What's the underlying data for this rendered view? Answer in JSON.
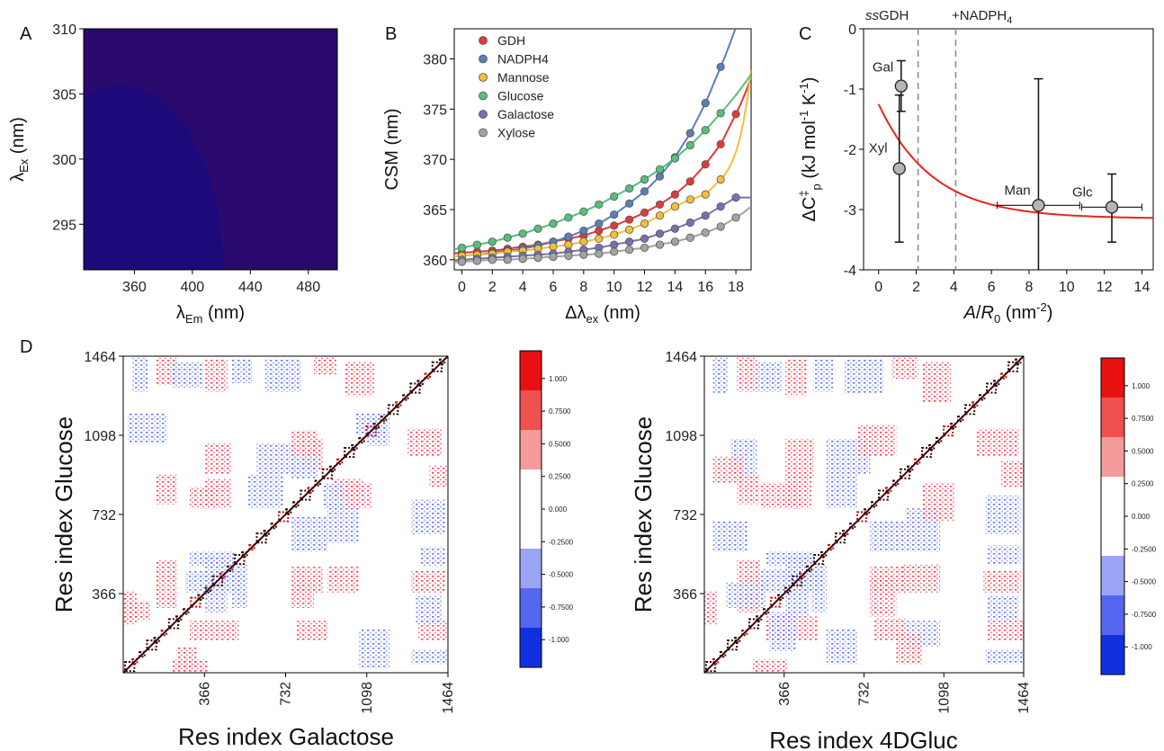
{
  "panel_labels": [
    "A",
    "B",
    "C",
    "D"
  ],
  "chart_data": [
    {
      "panel": "A",
      "type": "heatmap",
      "xlabel": "λEm (nm)",
      "ylabel": "λEx (nm)",
      "xlabel_main": "λ",
      "xlabel_sub": "Em",
      "xlabel_unit": " (nm)",
      "ylabel_main": "λ",
      "ylabel_sub": "Ex",
      "ylabel_unit": " (nm)",
      "xlim": [
        325,
        500
      ],
      "ylim": [
        291.5,
        310
      ],
      "xticks": [
        "360",
        "400",
        "440",
        "480"
      ],
      "yticks": [
        "295",
        "300",
        "305",
        "310"
      ],
      "peak": {
        "em": 350,
        "ex": 291.5
      },
      "colormap": "jet"
    },
    {
      "panel": "B",
      "type": "scatter",
      "xlabel": "Δλex (nm)",
      "xlabel_main": "Δλ",
      "xlabel_sub": "ex",
      "xlabel_unit": " (nm)",
      "ylabel": "CSM (nm)",
      "xlim": [
        -0.5,
        19
      ],
      "ylim": [
        359,
        383
      ],
      "xticks": [
        "0",
        "2",
        "4",
        "6",
        "8",
        "10",
        "12",
        "14",
        "16",
        "18"
      ],
      "yticks": [
        "360",
        "365",
        "370",
        "375",
        "380"
      ],
      "legend_position": "top-left",
      "x": [
        0,
        1,
        2,
        3,
        4,
        5,
        6,
        7,
        8,
        9,
        10,
        11,
        12,
        13,
        14,
        15,
        16,
        17,
        18
      ],
      "series": [
        {
          "name": "GDH",
          "color": "#e03a3a",
          "values": [
            360.7,
            360.8,
            360.9,
            361.1,
            361.3,
            361.5,
            361.8,
            362.1,
            362.4,
            362.9,
            363.4,
            364.0,
            364.7,
            365.5,
            366.5,
            367.8,
            369.5,
            371.5,
            374.5
          ]
        },
        {
          "name": "NADPH4",
          "color": "#5a7fb5",
          "values": [
            360.4,
            360.5,
            360.7,
            360.9,
            361.1,
            361.4,
            361.8,
            362.3,
            362.9,
            363.6,
            364.5,
            365.6,
            366.8,
            368.3,
            370.2,
            372.6,
            375.6,
            379.2,
            null
          ]
        },
        {
          "name": "Mannose",
          "color": "#f2bf3a",
          "values": [
            360.4,
            360.5,
            360.6,
            360.8,
            360.9,
            361.1,
            361.3,
            361.5,
            361.8,
            362.1,
            362.5,
            363.0,
            363.6,
            364.4,
            365.3,
            366.0,
            366.5,
            368.0,
            null
          ]
        },
        {
          "name": "Glucose",
          "color": "#55c07a",
          "values": [
            361.2,
            361.5,
            361.8,
            362.2,
            362.6,
            363.1,
            363.6,
            364.2,
            364.8,
            365.5,
            366.3,
            367.1,
            368.0,
            369.0,
            370.1,
            371.4,
            372.9,
            374.6,
            null
          ]
        },
        {
          "name": "Galactose",
          "color": "#7a70ae",
          "values": [
            360.0,
            360.1,
            360.2,
            360.3,
            360.4,
            360.5,
            360.6,
            360.8,
            361.0,
            361.2,
            361.5,
            361.8,
            362.1,
            362.6,
            363.1,
            363.7,
            364.4,
            365.3,
            366.2
          ]
        },
        {
          "name": "Xylose",
          "color": "#a3a3a3",
          "values": [
            359.8,
            359.9,
            360.0,
            360.0,
            360.1,
            360.2,
            360.3,
            360.4,
            360.5,
            360.6,
            360.8,
            361.0,
            361.2,
            361.5,
            361.8,
            362.2,
            362.7,
            363.3,
            364.2
          ]
        }
      ]
    },
    {
      "panel": "C",
      "type": "scatter",
      "xlabel": "A/R0 (nm-2)",
      "xlabel_a": "A",
      "xlabel_b": "/",
      "xlabel_c": "R",
      "xlabel_sub": "0",
      "xlabel_unit": " (nm",
      "xlabel_sup": "-2",
      "xlabel_close": ")",
      "ylabel": "ΔC‡p (kJ mol-1 K-1)",
      "ylabel_a": "ΔC",
      "ylabel_sup": "‡",
      "ylabel_sub": "p",
      "ylabel_b": " (kJ mol",
      "ylabel_sup2": "-1",
      "ylabel_c": " K",
      "ylabel_sup3": "-1",
      "ylabel_d": ")",
      "xlim": [
        -0.8,
        14.6
      ],
      "ylim": [
        -4,
        0
      ],
      "xticks": [
        "0",
        "2",
        "4",
        "6",
        "8",
        "10",
        "12",
        "14"
      ],
      "yticks": [
        "-4",
        "-3",
        "-2",
        "-1",
        "0"
      ],
      "annotations": [
        {
          "text_a": "ss",
          "text_b": "GDH",
          "x": 2.1
        },
        {
          "text": "+NADPH",
          "sub": "4",
          "x": 4.1
        }
      ],
      "points": [
        {
          "label": "Gal",
          "x": 1.2,
          "y": -0.95,
          "yerr": [
            0.42,
            0.42
          ],
          "xerr": 0
        },
        {
          "label": "Xyl",
          "x": 1.1,
          "y": -2.32,
          "yerr": [
            1.22,
            1.22
          ],
          "xerr": 0
        },
        {
          "label": "Man",
          "x": 8.5,
          "y": -2.93,
          "yerr": [
            2.1,
            1.2
          ],
          "xerr": 2.2
        },
        {
          "label": "Glc",
          "x": 12.4,
          "y": -2.96,
          "yerr": [
            0.55,
            0.58
          ],
          "xerr": 1.6
        }
      ],
      "fit": {
        "color": "#e8231f",
        "a": -3.15,
        "b": 1.9,
        "k": 0.35
      }
    },
    {
      "panel": "D1",
      "type": "heatmap",
      "xlabel": "Res index Galactose",
      "ylabel": "Res index Glucose",
      "ticks": [
        "366",
        "732",
        "1098",
        "1464"
      ],
      "range": [
        0,
        1464
      ],
      "colorbar": [
        "1.000",
        "0.7500",
        "0.5000",
        "0.2500",
        "0.000",
        "-0.2500",
        "-0.5000",
        "-0.7500",
        "-1.000"
      ],
      "blocks": [
        {
          "x": [
            40,
            110
          ],
          "y": [
            1300,
            1464
          ],
          "v": -0.5
        },
        {
          "x": [
            150,
            240
          ],
          "y": [
            1330,
            1464
          ],
          "v": 0.5
        },
        {
          "x": [
            220,
            360
          ],
          "y": [
            1320,
            1440
          ],
          "v": -0.45
        },
        {
          "x": [
            370,
            470
          ],
          "y": [
            1300,
            1450
          ],
          "v": 0.6
        },
        {
          "x": [
            490,
            580
          ],
          "y": [
            1340,
            1450
          ],
          "v": -0.5
        },
        {
          "x": [
            640,
            800
          ],
          "y": [
            1300,
            1450
          ],
          "v": -0.5
        },
        {
          "x": [
            860,
            960
          ],
          "y": [
            1380,
            1464
          ],
          "v": 0.5
        },
        {
          "x": [
            1000,
            1130
          ],
          "y": [
            1280,
            1440
          ],
          "v": 0.5
        },
        {
          "x": [
            370,
            490
          ],
          "y": [
            920,
            1060
          ],
          "v": 0.6
        },
        {
          "x": [
            600,
            780
          ],
          "y": [
            920,
            1060
          ],
          "v": -0.5
        },
        {
          "x": [
            800,
            900
          ],
          "y": [
            940,
            1080
          ],
          "v": 0.55
        },
        {
          "x": [
            1050,
            1180
          ],
          "y": [
            1100,
            1200
          ],
          "v": -0.4
        },
        {
          "x": [
            150,
            240
          ],
          "y": [
            780,
            920
          ],
          "v": 0.6
        },
        {
          "x": [
            370,
            490
          ],
          "y": [
            760,
            900
          ],
          "v": 0.65
        },
        {
          "x": [
            560,
            720
          ],
          "y": [
            760,
            920
          ],
          "v": -0.6
        },
        {
          "x": [
            1000,
            1120
          ],
          "y": [
            760,
            880
          ],
          "v": 0.55
        },
        {
          "x": [
            900,
            1000
          ],
          "y": [
            760,
            880
          ],
          "v": -0.4
        },
        {
          "x": [
            150,
            240
          ],
          "y": [
            300,
            520
          ],
          "v": 0.55
        },
        {
          "x": [
            370,
            470
          ],
          "y": [
            280,
            540
          ],
          "v": -0.6
        },
        {
          "x": [
            490,
            560
          ],
          "y": [
            300,
            500
          ],
          "v": -0.5
        },
        {
          "x": [
            760,
            860
          ],
          "y": [
            300,
            420
          ],
          "v": 0.5
        },
        {
          "x": [
            1060,
            1200
          ],
          "y": [
            20,
            200
          ],
          "v": -0.6
        },
        {
          "x": [
            0,
            60
          ],
          "y": [
            220,
            380
          ],
          "v": 0.45
        },
        {
          "x": [
            240,
            330
          ],
          "y": [
            20,
            120
          ],
          "v": 0.55
        }
      ]
    },
    {
      "panel": "D2",
      "type": "heatmap",
      "xlabel": "Res index 4DGluc",
      "ylabel": "Res index Glucose",
      "ticks": [
        "366",
        "732",
        "1098",
        "1464"
      ],
      "range": [
        0,
        1464
      ],
      "colorbar": [
        "1.000",
        "0.7500",
        "0.5000",
        "0.2500",
        "0.000",
        "-0.2500",
        "-0.5000",
        "-0.7500",
        "-1.000"
      ],
      "blocks": [
        {
          "x": [
            40,
            110
          ],
          "y": [
            1290,
            1464
          ],
          "v": -0.5
        },
        {
          "x": [
            150,
            240
          ],
          "y": [
            1300,
            1464
          ],
          "v": 0.5
        },
        {
          "x": [
            240,
            360
          ],
          "y": [
            1300,
            1440
          ],
          "v": -0.5
        },
        {
          "x": [
            370,
            470
          ],
          "y": [
            1280,
            1450
          ],
          "v": 0.55
        },
        {
          "x": [
            500,
            590
          ],
          "y": [
            1300,
            1450
          ],
          "v": -0.5
        },
        {
          "x": [
            640,
            820
          ],
          "y": [
            1290,
            1450
          ],
          "v": -0.55
        },
        {
          "x": [
            860,
            980
          ],
          "y": [
            1360,
            1464
          ],
          "v": 0.5
        },
        {
          "x": [
            1000,
            1130
          ],
          "y": [
            1250,
            1440
          ],
          "v": 0.5
        },
        {
          "x": [
            120,
            240
          ],
          "y": [
            920,
            1080
          ],
          "v": -0.45
        },
        {
          "x": [
            370,
            500
          ],
          "y": [
            900,
            1080
          ],
          "v": 0.6
        },
        {
          "x": [
            560,
            760
          ],
          "y": [
            920,
            1080
          ],
          "v": -0.5
        },
        {
          "x": [
            150,
            250
          ],
          "y": [
            780,
            920
          ],
          "v": 0.6
        },
        {
          "x": [
            370,
            490
          ],
          "y": [
            760,
            920
          ],
          "v": 0.6
        },
        {
          "x": [
            560,
            700
          ],
          "y": [
            760,
            920
          ],
          "v": -0.55
        },
        {
          "x": [
            1000,
            1150
          ],
          "y": [
            700,
            880
          ],
          "v": 0.5
        },
        {
          "x": [
            150,
            260
          ],
          "y": [
            280,
            520
          ],
          "v": 0.55
        },
        {
          "x": [
            370,
            480
          ],
          "y": [
            260,
            540
          ],
          "v": -0.6
        },
        {
          "x": [
            490,
            560
          ],
          "y": [
            280,
            500
          ],
          "v": -0.45
        },
        {
          "x": [
            760,
            880
          ],
          "y": [
            260,
            440
          ],
          "v": 0.45
        },
        {
          "x": [
            100,
            280
          ],
          "y": [
            300,
            420
          ],
          "v": -0.5
        },
        {
          "x": [
            560,
            700
          ],
          "y": [
            40,
            200
          ],
          "v": -0.45
        },
        {
          "x": [
            880,
            1000
          ],
          "y": [
            40,
            180
          ],
          "v": 0.45
        },
        {
          "x": [
            0,
            60
          ],
          "y": [
            220,
            380
          ],
          "v": 0.45
        }
      ]
    }
  ]
}
